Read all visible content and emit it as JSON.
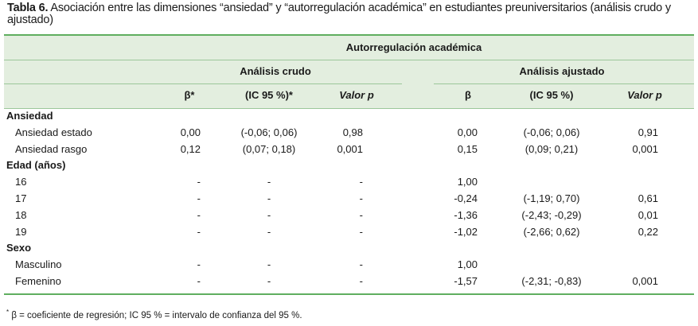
{
  "caption": {
    "label": "Tabla 6.",
    "text": " Asociación entre las dimensiones “ansiedad” y “autorregulación académica” en estudiantes preuniversitarios (análisis crudo y ajustado)"
  },
  "header": {
    "group": "Autorregulación académica",
    "crude": "Análisis crudo",
    "adjusted": "Análisis ajustado",
    "columns": [
      "β*",
      "(IC 95 %)*",
      "Valor p",
      "β",
      "(IC 95 %)",
      "Valor p"
    ]
  },
  "rows": [
    {
      "label": "Ansiedad",
      "section": true,
      "cells": [
        "",
        "",
        "",
        "",
        "",
        ""
      ]
    },
    {
      "label": "Ansiedad estado",
      "section": false,
      "cells": [
        "0,00",
        "(-0,06; 0,06)",
        "0,98",
        "0,00",
        "(-0,06; 0,06)",
        "0,91"
      ]
    },
    {
      "label": "Ansiedad rasgo",
      "section": false,
      "cells": [
        "0,12",
        "(0,07; 0,18)",
        "0,001",
        "0,15",
        "(0,09; 0,21)",
        "0,001"
      ]
    },
    {
      "label": "Edad (años)",
      "section": true,
      "cells": [
        "",
        "",
        "",
        "",
        "",
        ""
      ]
    },
    {
      "label": "16",
      "section": false,
      "cells": [
        "-",
        "-",
        "-",
        "1,00",
        "",
        ""
      ]
    },
    {
      "label": "17",
      "section": false,
      "cells": [
        "-",
        "-",
        "-",
        "-0,24",
        "(-1,19; 0,70)",
        "0,61"
      ]
    },
    {
      "label": "18",
      "section": false,
      "cells": [
        "-",
        "-",
        "-",
        "-1,36",
        "(-2,43; -0,29)",
        "0,01"
      ]
    },
    {
      "label": "19",
      "section": false,
      "cells": [
        "-",
        "-",
        "-",
        "-1,02",
        "(-2,66; 0,62)",
        "0,22"
      ]
    },
    {
      "label": "Sexo",
      "section": true,
      "cells": [
        "",
        "",
        "",
        "",
        "",
        ""
      ]
    },
    {
      "label": "Masculino",
      "section": false,
      "cells": [
        "-",
        "-",
        "-",
        "1,00",
        "",
        ""
      ]
    },
    {
      "label": "Femenino",
      "section": false,
      "cells": [
        "-",
        "-",
        "-",
        "-1,57",
        "(-2,31; -0,83)",
        "0,001"
      ]
    }
  ],
  "footnote": {
    "mark": "*",
    "text": " β = coeficiente de regresión; IC 95 % = intervalo de confianza del 95 %."
  },
  "colors": {
    "rule": "#5fae5f",
    "band": "#e3eedf",
    "line": "#9cc79a"
  }
}
